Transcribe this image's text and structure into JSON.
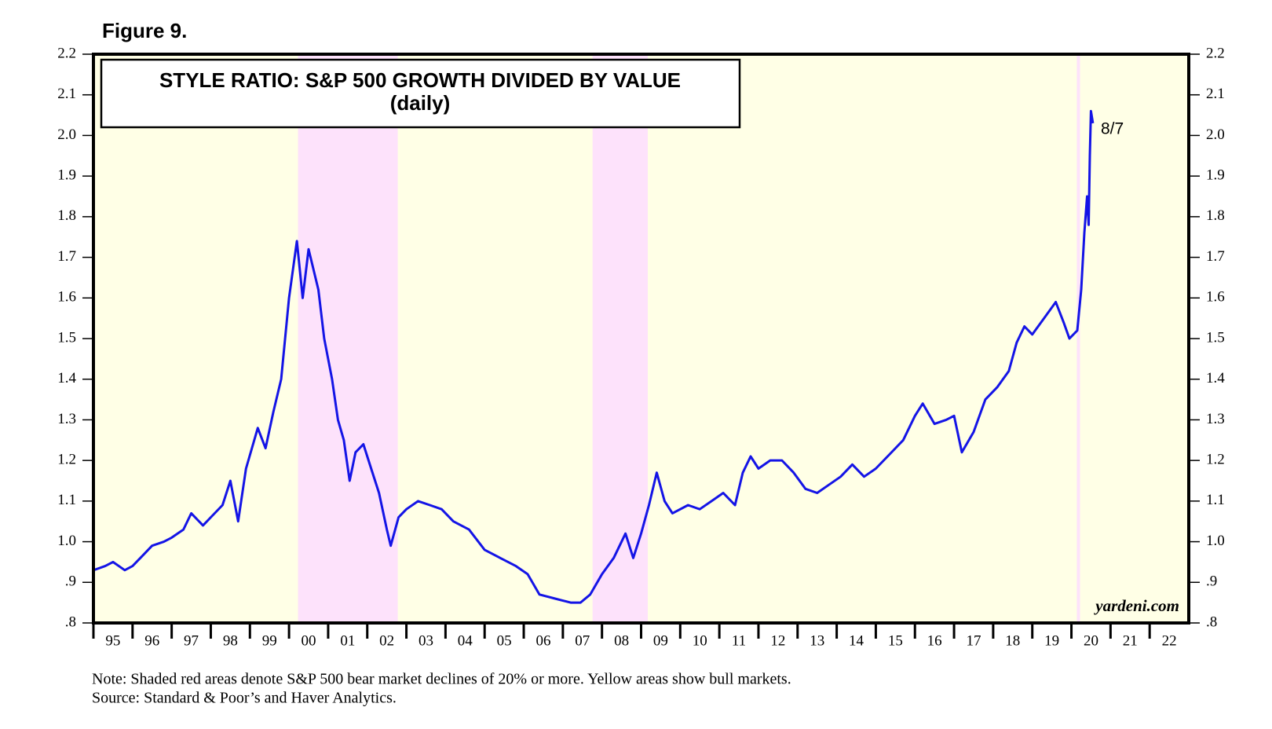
{
  "figure_label": "Figure 9.",
  "chart_data": {
    "type": "line",
    "title": "STYLE RATIO: S&P 500 GROWTH DIVIDED BY VALUE",
    "subtitle": "(daily)",
    "color": "#1414e6",
    "bull_color": "#ffffe6",
    "bear_color": "#fde2fb",
    "bear_markets": [
      [
        2000.23,
        2002.78
      ],
      [
        2007.76,
        2009.17
      ],
      [
        2020.14,
        2020.22
      ]
    ],
    "x": [
      1995.0,
      1995.3,
      1995.5,
      1995.8,
      1996.0,
      1996.3,
      1996.5,
      1996.8,
      1997.0,
      1997.3,
      1997.5,
      1997.8,
      1998.0,
      1998.3,
      1998.5,
      1998.7,
      1998.9,
      1999.2,
      1999.4,
      1999.6,
      1999.8,
      2000.0,
      2000.2,
      2000.35,
      2000.5,
      2000.75,
      2000.9,
      2001.1,
      2001.25,
      2001.4,
      2001.55,
      2001.7,
      2001.9,
      2002.1,
      2002.3,
      2002.5,
      2002.6,
      2002.8,
      2003.0,
      2003.3,
      2003.6,
      2003.9,
      2004.2,
      2004.6,
      2005.0,
      2005.4,
      2005.8,
      2006.1,
      2006.4,
      2006.8,
      2007.2,
      2007.45,
      2007.7,
      2008.0,
      2008.3,
      2008.6,
      2008.8,
      2009.0,
      2009.2,
      2009.4,
      2009.6,
      2009.8,
      2010.2,
      2010.5,
      2010.8,
      2011.1,
      2011.4,
      2011.6,
      2011.8,
      2012.0,
      2012.3,
      2012.6,
      2012.9,
      2013.2,
      2013.5,
      2013.8,
      2014.1,
      2014.4,
      2014.7,
      2015.0,
      2015.3,
      2015.7,
      2016.0,
      2016.2,
      2016.5,
      2016.8,
      2017.0,
      2017.2,
      2017.5,
      2017.8,
      2018.1,
      2018.4,
      2018.6,
      2018.8,
      2019.0,
      2019.3,
      2019.6,
      2019.8,
      2019.95,
      2020.15,
      2020.25,
      2020.33,
      2020.4,
      2020.44,
      2020.47,
      2020.5,
      2020.55
    ],
    "values": [
      0.93,
      0.94,
      0.95,
      0.93,
      0.94,
      0.97,
      0.99,
      1.0,
      1.01,
      1.03,
      1.07,
      1.04,
      1.06,
      1.09,
      1.15,
      1.05,
      1.18,
      1.28,
      1.23,
      1.32,
      1.4,
      1.6,
      1.74,
      1.6,
      1.72,
      1.62,
      1.5,
      1.4,
      1.3,
      1.25,
      1.15,
      1.22,
      1.24,
      1.18,
      1.12,
      1.03,
      0.99,
      1.06,
      1.08,
      1.1,
      1.09,
      1.08,
      1.05,
      1.03,
      0.98,
      0.96,
      0.94,
      0.92,
      0.87,
      0.86,
      0.85,
      0.85,
      0.87,
      0.92,
      0.96,
      1.02,
      0.96,
      1.02,
      1.09,
      1.17,
      1.1,
      1.07,
      1.09,
      1.08,
      1.1,
      1.12,
      1.09,
      1.17,
      1.21,
      1.18,
      1.2,
      1.2,
      1.17,
      1.13,
      1.12,
      1.14,
      1.16,
      1.19,
      1.16,
      1.18,
      1.21,
      1.25,
      1.31,
      1.34,
      1.29,
      1.3,
      1.31,
      1.22,
      1.27,
      1.35,
      1.38,
      1.42,
      1.49,
      1.53,
      1.51,
      1.55,
      1.59,
      1.54,
      1.5,
      1.52,
      1.62,
      1.76,
      1.85,
      1.78,
      1.95,
      2.06,
      2.03
    ],
    "xlim": [
      1995,
      2023
    ],
    "xticks": [
      {
        "value": 1995,
        "label": "95"
      },
      {
        "value": 1996,
        "label": "96"
      },
      {
        "value": 1997,
        "label": "97"
      },
      {
        "value": 1998,
        "label": "98"
      },
      {
        "value": 1999,
        "label": "99"
      },
      {
        "value": 2000,
        "label": "00"
      },
      {
        "value": 2001,
        "label": "01"
      },
      {
        "value": 2002,
        "label": "02"
      },
      {
        "value": 2003,
        "label": "03"
      },
      {
        "value": 2004,
        "label": "04"
      },
      {
        "value": 2005,
        "label": "05"
      },
      {
        "value": 2006,
        "label": "06"
      },
      {
        "value": 2007,
        "label": "07"
      },
      {
        "value": 2008,
        "label": "08"
      },
      {
        "value": 2009,
        "label": "09"
      },
      {
        "value": 2010,
        "label": "10"
      },
      {
        "value": 2011,
        "label": "11"
      },
      {
        "value": 2012,
        "label": "12"
      },
      {
        "value": 2013,
        "label": "13"
      },
      {
        "value": 2014,
        "label": "14"
      },
      {
        "value": 2015,
        "label": "15"
      },
      {
        "value": 2016,
        "label": "16"
      },
      {
        "value": 2017,
        "label": "17"
      },
      {
        "value": 2018,
        "label": "18"
      },
      {
        "value": 2019,
        "label": "19"
      },
      {
        "value": 2020,
        "label": "20"
      },
      {
        "value": 2021,
        "label": "21"
      },
      {
        "value": 2022,
        "label": "22"
      }
    ],
    "ylim": [
      0.8,
      2.2
    ],
    "yticks": [
      {
        "value": 0.8,
        "label": ".8"
      },
      {
        "value": 0.9,
        "label": ".9"
      },
      {
        "value": 1.0,
        "label": "1.0"
      },
      1.1,
      1.2,
      1.3,
      1.4,
      1.5,
      1.6,
      1.7,
      1.8,
      1.9,
      {
        "value": 2.0,
        "label": "2.0"
      },
      2.1,
      2.2
    ],
    "end_label": "8/7",
    "watermark": "yardeni.com",
    "note": "Note: Shaded red areas denote S&P 500 bear market declines of 20% or more. Yellow areas show bull markets.",
    "source": "Source: Standard & Poor’s and Haver Analytics."
  }
}
